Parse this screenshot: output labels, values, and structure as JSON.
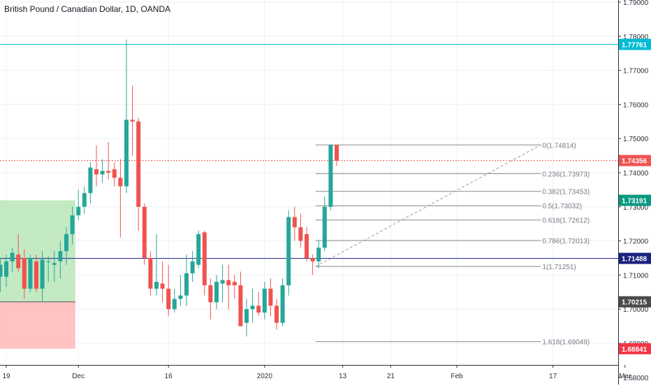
{
  "chart_data": {
    "type": "candlestick",
    "title": "British Pound / Canadian Dollar, 1D, OANDA",
    "y_range": [
      1.68,
      1.79
    ],
    "y_ticks": [
      "1.68000",
      "1.69000",
      "1.70000",
      "1.71000",
      "1.72000",
      "1.73000",
      "1.74000",
      "1.75000",
      "1.76000",
      "1.77000",
      "1.78000",
      "1.79000"
    ],
    "x_ticks": [
      {
        "label": "19",
        "day": 0
      },
      {
        "label": "Dec",
        "day": 12
      },
      {
        "label": "16",
        "day": 27
      },
      {
        "label": "2020",
        "day": 43
      },
      {
        "label": "13",
        "day": 56
      },
      {
        "label": "21",
        "day": 64
      },
      {
        "label": "Feb",
        "day": 75
      },
      {
        "label": "17",
        "day": 91
      },
      {
        "label": "Mar",
        "day": 103
      }
    ],
    "up_color": "#26a69a",
    "down_color": "#ef5350",
    "candles": [
      {
        "d": -1,
        "o": 1.7095,
        "h": 1.715,
        "l": 1.705,
        "c": 1.713
      },
      {
        "d": 0,
        "o": 1.7095,
        "h": 1.716,
        "l": 1.7065,
        "c": 1.714
      },
      {
        "d": 1,
        "o": 1.714,
        "h": 1.718,
        "l": 1.711,
        "c": 1.7165
      },
      {
        "d": 2,
        "o": 1.716,
        "h": 1.722,
        "l": 1.711,
        "c": 1.712
      },
      {
        "d": 3,
        "o": 1.715,
        "h": 1.7175,
        "l": 1.703,
        "c": 1.706
      },
      {
        "d": 4,
        "o": 1.706,
        "h": 1.716,
        "l": 1.705,
        "c": 1.715
      },
      {
        "d": 5,
        "o": 1.714,
        "h": 1.716,
        "l": 1.705,
        "c": 1.706
      },
      {
        "d": 6,
        "o": 1.706,
        "h": 1.717,
        "l": 1.702,
        "c": 1.7145
      },
      {
        "d": 7,
        "o": 1.714,
        "h": 1.7155,
        "l": 1.708,
        "c": 1.714
      },
      {
        "d": 8,
        "o": 1.713,
        "h": 1.717,
        "l": 1.708,
        "c": 1.7135
      },
      {
        "d": 9,
        "o": 1.714,
        "h": 1.72,
        "l": 1.709,
        "c": 1.717
      },
      {
        "d": 10,
        "o": 1.717,
        "h": 1.724,
        "l": 1.713,
        "c": 1.722
      },
      {
        "d": 11,
        "o": 1.722,
        "h": 1.73,
        "l": 1.719,
        "c": 1.7275
      },
      {
        "d": 12,
        "o": 1.7275,
        "h": 1.735,
        "l": 1.726,
        "c": 1.73
      },
      {
        "d": 13,
        "o": 1.73,
        "h": 1.736,
        "l": 1.728,
        "c": 1.734
      },
      {
        "d": 14,
        "o": 1.734,
        "h": 1.743,
        "l": 1.731,
        "c": 1.7415
      },
      {
        "d": 15,
        "o": 1.741,
        "h": 1.748,
        "l": 1.736,
        "c": 1.7395
      },
      {
        "d": 16,
        "o": 1.7395,
        "h": 1.744,
        "l": 1.737,
        "c": 1.7405
      },
      {
        "d": 17,
        "o": 1.7405,
        "h": 1.749,
        "l": 1.738,
        "c": 1.74
      },
      {
        "d": 18,
        "o": 1.741,
        "h": 1.743,
        "l": 1.736,
        "c": 1.7385
      },
      {
        "d": 19,
        "o": 1.7385,
        "h": 1.744,
        "l": 1.721,
        "c": 1.736
      },
      {
        "d": 20,
        "o": 1.736,
        "h": 1.779,
        "l": 1.734,
        "c": 1.7555
      },
      {
        "d": 21,
        "o": 1.7555,
        "h": 1.7655,
        "l": 1.745,
        "c": 1.755
      },
      {
        "d": 22,
        "o": 1.755,
        "h": 1.756,
        "l": 1.723,
        "c": 1.73
      },
      {
        "d": 23,
        "o": 1.73,
        "h": 1.731,
        "l": 1.713,
        "c": 1.715
      },
      {
        "d": 24,
        "o": 1.715,
        "h": 1.717,
        "l": 1.704,
        "c": 1.706
      },
      {
        "d": 25,
        "o": 1.706,
        "h": 1.722,
        "l": 1.704,
        "c": 1.708
      },
      {
        "d": 26,
        "o": 1.7075,
        "h": 1.714,
        "l": 1.702,
        "c": 1.706
      },
      {
        "d": 27,
        "o": 1.706,
        "h": 1.713,
        "l": 1.698,
        "c": 1.7
      },
      {
        "d": 28,
        "o": 1.7,
        "h": 1.706,
        "l": 1.699,
        "c": 1.703
      },
      {
        "d": 29,
        "o": 1.703,
        "h": 1.71,
        "l": 1.701,
        "c": 1.704
      },
      {
        "d": 30,
        "o": 1.704,
        "h": 1.716,
        "l": 1.701,
        "c": 1.7105
      },
      {
        "d": 31,
        "o": 1.7105,
        "h": 1.717,
        "l": 1.708,
        "c": 1.714
      },
      {
        "d": 32,
        "o": 1.713,
        "h": 1.723,
        "l": 1.712,
        "c": 1.722
      },
      {
        "d": 33,
        "o": 1.7225,
        "h": 1.723,
        "l": 1.704,
        "c": 1.707
      },
      {
        "d": 34,
        "o": 1.707,
        "h": 1.709,
        "l": 1.697,
        "c": 1.702
      },
      {
        "d": 35,
        "o": 1.702,
        "h": 1.71,
        "l": 1.7,
        "c": 1.708
      },
      {
        "d": 36,
        "o": 1.7075,
        "h": 1.713,
        "l": 1.702,
        "c": 1.7085
      },
      {
        "d": 37,
        "o": 1.7085,
        "h": 1.713,
        "l": 1.7,
        "c": 1.707
      },
      {
        "d": 38,
        "o": 1.708,
        "h": 1.71,
        "l": 1.703,
        "c": 1.707
      },
      {
        "d": 39,
        "o": 1.707,
        "h": 1.711,
        "l": 1.695,
        "c": 1.695
      },
      {
        "d": 40,
        "o": 1.696,
        "h": 1.703,
        "l": 1.692,
        "c": 1.7
      },
      {
        "d": 41,
        "o": 1.7,
        "h": 1.706,
        "l": 1.696,
        "c": 1.701
      },
      {
        "d": 42,
        "o": 1.701,
        "h": 1.705,
        "l": 1.698,
        "c": 1.699
      },
      {
        "d": 43,
        "o": 1.699,
        "h": 1.708,
        "l": 1.697,
        "c": 1.706
      },
      {
        "d": 44,
        "o": 1.706,
        "h": 1.709,
        "l": 1.698,
        "c": 1.701
      },
      {
        "d": 45,
        "o": 1.701,
        "h": 1.703,
        "l": 1.694,
        "c": 1.696
      },
      {
        "d": 46,
        "o": 1.696,
        "h": 1.709,
        "l": 1.695,
        "c": 1.707
      },
      {
        "d": 47,
        "o": 1.707,
        "h": 1.729,
        "l": 1.704,
        "c": 1.727
      },
      {
        "d": 48,
        "o": 1.727,
        "h": 1.73,
        "l": 1.72,
        "c": 1.724
      },
      {
        "d": 49,
        "o": 1.724,
        "h": 1.728,
        "l": 1.718,
        "c": 1.72
      },
      {
        "d": 50,
        "o": 1.722,
        "h": 1.724,
        "l": 1.714,
        "c": 1.715
      },
      {
        "d": 51,
        "o": 1.715,
        "h": 1.716,
        "l": 1.71,
        "c": 1.714
      },
      {
        "d": 52,
        "o": 1.714,
        "h": 1.72,
        "l": 1.712,
        "c": 1.718
      },
      {
        "d": 53,
        "o": 1.718,
        "h": 1.733,
        "l": 1.717,
        "c": 1.73
      },
      {
        "d": 54,
        "o": 1.73,
        "h": 1.7481,
        "l": 1.729,
        "c": 1.7481
      },
      {
        "d": 55,
        "o": 1.7481,
        "h": 1.7481,
        "l": 1.742,
        "c": 1.7435
      }
    ],
    "horizontal_lines": [
      {
        "price": 1.7776,
        "color": "#00bcd4",
        "label": "1.77761",
        "style": "solid"
      },
      {
        "price": 1.74356,
        "color": "#ef5350",
        "label": "1.74356",
        "style": "dotted"
      },
      {
        "price": 1.71488,
        "color": "#1a237e",
        "label": "1.71488",
        "style": "solid"
      }
    ],
    "price_tags": [
      {
        "price": 1.7319,
        "label": "1.73191",
        "bg": "#089981"
      },
      {
        "price": 1.70215,
        "label": "1.70215",
        "bg": "#4a4a4a"
      },
      {
        "price": 1.68841,
        "label": "1.68841",
        "bg": "#f23645"
      }
    ],
    "fib_levels": [
      {
        "ratio": "0",
        "price": 1.74814,
        "label": "0(1.74814)"
      },
      {
        "ratio": "0.236",
        "price": 1.73973,
        "label": "0.236(1.73973)"
      },
      {
        "ratio": "0.382",
        "price": 1.73453,
        "label": "0.382(1.73453)"
      },
      {
        "ratio": "0.5",
        "price": 1.73032,
        "label": "0.5(1.73032)"
      },
      {
        "ratio": "0.618",
        "price": 1.72612,
        "label": "0.618(1.72612)"
      },
      {
        "ratio": "0.786",
        "price": 1.72013,
        "label": "0.786(1.72013)"
      },
      {
        "ratio": "1",
        "price": 1.71251,
        "label": "1(1.71251)"
      },
      {
        "ratio": "1.618",
        "price": 1.69049,
        "label": "1.618(1.69049)"
      }
    ],
    "fib_range_days": [
      51.5,
      89
    ],
    "position_box": {
      "day_range": [
        -1.5,
        11.5
      ],
      "entry": 1.70215,
      "target": 1.7319,
      "stop": 1.68841
    },
    "legend": "none",
    "grid": true
  }
}
